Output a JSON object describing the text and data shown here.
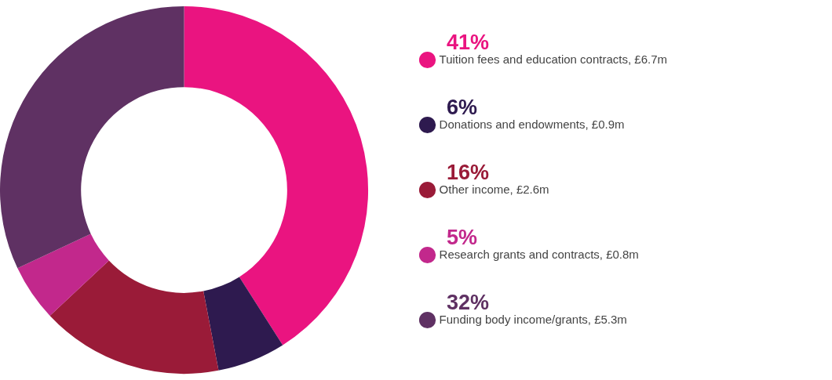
{
  "chart_data": {
    "type": "donut",
    "categories": [
      "Tuition fees and education contracts, £6.7m",
      "Donations and endowments, £0.9m",
      "Other income, £2.6m",
      "Research grants and contracts, £0.8m",
      "Funding body income/grants, £5.3m"
    ],
    "values": [
      41,
      6,
      16,
      5,
      32
    ],
    "value_labels": [
      "41%",
      "6%",
      "16%",
      "5%",
      "32%"
    ],
    "colors": [
      "#ea1480",
      "#2e1a4f",
      "#9a1b38",
      "#c2288c",
      "#5f3163"
    ],
    "legend": "right"
  }
}
